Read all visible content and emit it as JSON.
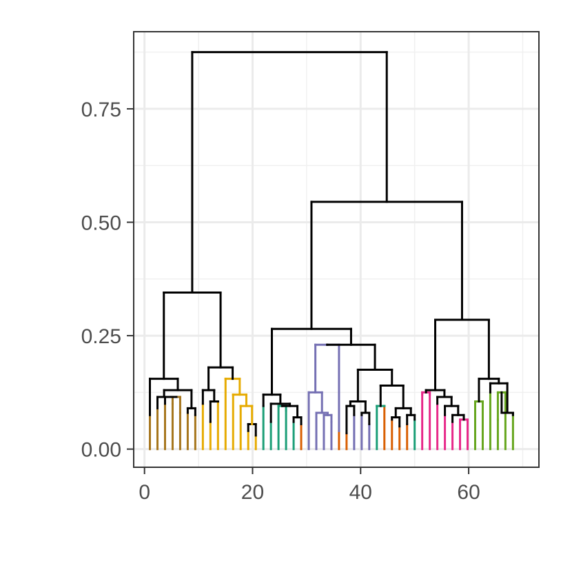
{
  "chart_data": {
    "type": "dendrogram",
    "title": "",
    "xlabel": "",
    "ylabel": "",
    "xlim": [
      -2,
      73
    ],
    "ylim": [
      -0.04,
      0.92
    ],
    "x_ticks": [
      {
        "value": 0,
        "label": "0"
      },
      {
        "value": 20,
        "label": "20"
      },
      {
        "value": 40,
        "label": "40"
      },
      {
        "value": 60,
        "label": "60"
      }
    ],
    "y_ticks": [
      {
        "value": 0.0,
        "label": "0.00"
      },
      {
        "value": 0.25,
        "label": "0.25"
      },
      {
        "value": 0.5,
        "label": "0.50"
      },
      {
        "value": 0.75,
        "label": "0.75"
      }
    ],
    "grid": true,
    "root": {
      "h": 0.875,
      "children": [
        {
          "h": 0.345,
          "children": [
            {
              "h": 0.155,
              "color": "#000000",
              "children": [
                {
                  "leaf": 1,
                  "h": 0.075,
                  "color": "#A6761D"
                },
                {
                  "h": 0.13,
                  "color": "#000000",
                  "children": [
                    {
                      "h": 0.115,
                      "color": "#000000",
                      "children": [
                        {
                          "leaf": 2,
                          "h": 0.09,
                          "color": "#A6761D"
                        },
                        {
                          "h": 0.115,
                          "color": "#000000",
                          "children": [
                            {
                              "leaf": 3,
                              "h": 0.1,
                              "color": "#A6761D"
                            },
                            {
                              "h": 0.115,
                              "color": "#A6761D",
                              "children": [
                                {
                                  "leaf": 4,
                                  "h": 0.1,
                                  "color": "#A6761D"
                                },
                                {
                                  "leaf": 5,
                                  "h": 0.08,
                                  "color": "#A6761D"
                                }
                              ]
                            }
                          ]
                        }
                      ]
                    },
                    {
                      "h": 0.09,
                      "color": "#000000",
                      "children": [
                        {
                          "leaf": 6,
                          "h": 0.08,
                          "color": "#A6761D"
                        },
                        {
                          "leaf": 7,
                          "h": 0.075,
                          "color": "#A6761D"
                        }
                      ]
                    }
                  ]
                }
              ]
            },
            {
              "h": 0.18,
              "color": "#000000",
              "children": [
                {
                  "h": 0.13,
                  "color": "#000000",
                  "children": [
                    {
                      "leaf": 8,
                      "h": 0.1,
                      "color": "#E6AB02"
                    },
                    {
                      "h": 0.105,
                      "color": "#000000",
                      "children": [
                        {
                          "leaf": 9,
                          "h": 0.06,
                          "color": "#E6AB02"
                        },
                        {
                          "leaf": 10,
                          "h": 0.105,
                          "color": "#E6AB02"
                        }
                      ]
                    }
                  ]
                },
                {
                  "h": 0.155,
                  "color": "#E6AB02",
                  "children": [
                    {
                      "leaf": 11,
                      "h": 0.155,
                      "color": "#E6AB02"
                    },
                    {
                      "h": 0.12,
                      "color": "#E6AB02",
                      "children": [
                        {
                          "leaf": 12,
                          "h": 0.12,
                          "color": "#E6AB02"
                        },
                        {
                          "h": 0.095,
                          "color": "#E6AB02",
                          "children": [
                            {
                              "leaf": 13,
                              "h": 0.095,
                              "color": "#E6AB02"
                            },
                            {
                              "h": 0.055,
                              "color": "#000000",
                              "children": [
                                {
                                  "leaf": 14,
                                  "h": 0.04,
                                  "color": "#E6AB02"
                                },
                                {
                                  "leaf": 15,
                                  "h": 0.03,
                                  "color": "#E6AB02"
                                }
                              ]
                            }
                          ]
                        }
                      ]
                    }
                  ]
                }
              ]
            }
          ]
        },
        {
          "h": 0.545,
          "children": [
            {
              "h": 0.265,
              "children": [
                {
                  "h": 0.12,
                  "color": "#000000",
                  "children": [
                    {
                      "leaf": 16,
                      "h": 0.095,
                      "color": "#1B9E77"
                    },
                    {
                      "h": 0.1,
                      "color": "#000000",
                      "children": [
                        {
                          "leaf": 17,
                          "h": 0.06,
                          "color": "#1B9E77"
                        },
                        {
                          "h": 0.095,
                          "color": "#000000",
                          "children": [
                            {
                              "h": 0.095,
                              "color": "#1B9E77",
                              "children": [
                                {
                                  "leaf": 18,
                                  "h": 0.095,
                                  "color": "#1B9E77"
                                },
                                {
                                  "leaf": 19,
                                  "h": 0.085,
                                  "color": "#1B9E77"
                                }
                              ]
                            },
                            {
                              "h": 0.07,
                              "color": "#000000",
                              "children": [
                                {
                                  "leaf": 20,
                                  "h": 0.06,
                                  "color": "#1B9E77"
                                },
                                {
                                  "leaf": 21,
                                  "h": 0.055,
                                  "color": "#D95F02"
                                }
                              ]
                            }
                          ]
                        }
                      ]
                    }
                  ]
                },
                {
                  "h": 0.23,
                  "color": "#000000",
                  "children": [
                    {
                      "h": 0.23,
                      "color": "#7570B3",
                      "children": [
                        {
                          "h": 0.125,
                          "color": "#7570B3",
                          "children": [
                            {
                              "leaf": 22,
                              "h": 0.125,
                              "color": "#7570B3"
                            },
                            {
                              "h": 0.08,
                              "color": "#7570B3",
                              "children": [
                                {
                                  "leaf": 23,
                                  "h": 0.08,
                                  "color": "#7570B3"
                                },
                                {
                                  "h": 0.075,
                                  "color": "#7570B3",
                                  "children": [
                                    {
                                      "leaf": 24,
                                      "h": 0.075,
                                      "color": "#7570B3"
                                    },
                                    {
                                      "leaf": 25,
                                      "h": 0.06,
                                      "color": "#7570B3"
                                    }
                                  ]
                                }
                              ]
                            }
                          ]
                        },
                        {
                          "leaf": 26,
                          "h": 0.04,
                          "color": "#D95F02"
                        }
                      ]
                    },
                    {
                      "h": 0.175,
                      "color": "#000000",
                      "children": [
                        {
                          "h": 0.105,
                          "color": "#000000",
                          "children": [
                            {
                              "h": 0.095,
                              "color": "#000000",
                              "children": [
                                {
                                  "leaf": 27,
                                  "h": 0.035,
                                  "color": "#D95F02"
                                },
                                {
                                  "leaf": 28,
                                  "h": 0.075,
                                  "color": "#7570B3"
                                }
                              ]
                            },
                            {
                              "h": 0.08,
                              "color": "#000000",
                              "children": [
                                {
                                  "leaf": 29,
                                  "h": 0.075,
                                  "color": "#7570B3"
                                },
                                {
                                  "leaf": 30,
                                  "h": 0.055,
                                  "color": "#7570B3"
                                }
                              ]
                            }
                          ]
                        },
                        {
                          "h": 0.14,
                          "color": "#000000",
                          "children": [
                            {
                              "h": 0.095,
                              "color": "#1B9E77",
                              "children": [
                                {
                                  "leaf": 31,
                                  "h": 0.095,
                                  "color": "#1B9E77"
                                },
                                {
                                  "leaf": 32,
                                  "h": 0.095,
                                  "color": "#D95F02"
                                }
                              ]
                            },
                            {
                              "h": 0.09,
                              "color": "#000000",
                              "children": [
                                {
                                  "h": 0.07,
                                  "color": "#000000",
                                  "children": [
                                    {
                                      "leaf": 33,
                                      "h": 0.065,
                                      "color": "#D95F02"
                                    },
                                    {
                                      "leaf": 34,
                                      "h": 0.05,
                                      "color": "#D95F02"
                                    }
                                  ]
                                },
                                {
                                  "h": 0.075,
                                  "color": "#000000",
                                  "children": [
                                    {
                                      "leaf": 35,
                                      "h": 0.055,
                                      "color": "#D95F02"
                                    },
                                    {
                                      "leaf": 36,
                                      "h": 0.065,
                                      "color": "#1B9E77"
                                    }
                                  ]
                                }
                              ]
                            }
                          ]
                        }
                      ]
                    }
                  ]
                }
              ]
            },
            {
              "h": 0.285,
              "children": [
                {
                  "h": 0.13,
                  "color": "#000000",
                  "children": [
                    {
                      "h": 0.125,
                      "color": "#E7298A",
                      "children": [
                        {
                          "leaf": 37,
                          "h": 0.12,
                          "color": "#E7298A"
                        },
                        {
                          "leaf": 38,
                          "h": 0.12,
                          "color": "#E7298A"
                        }
                      ]
                    },
                    {
                      "h": 0.115,
                      "color": "#000000",
                      "children": [
                        {
                          "leaf": 39,
                          "h": 0.1,
                          "color": "#E7298A"
                        },
                        {
                          "h": 0.095,
                          "color": "#000000",
                          "children": [
                            {
                              "leaf": 40,
                              "h": 0.075,
                              "color": "#E7298A"
                            },
                            {
                              "h": 0.075,
                              "color": "#000000",
                              "children": [
                                {
                                  "leaf": 41,
                                  "h": 0.06,
                                  "color": "#E7298A"
                                },
                                {
                                  "h": 0.065,
                                  "color": "#E7298A",
                                  "children": [
                                    {
                                      "leaf": 42,
                                      "h": 0.06,
                                      "color": "#E7298A"
                                    },
                                    {
                                      "leaf": 43,
                                      "h": 0.06,
                                      "color": "#E7298A"
                                    }
                                  ]
                                }
                              ]
                            }
                          ]
                        }
                      ]
                    }
                  ]
                },
                {
                  "h": 0.155,
                  "color": "#000000",
                  "children": [
                    {
                      "h": 0.105,
                      "color": "#66A61E",
                      "children": [
                        {
                          "leaf": 44,
                          "h": 0.095,
                          "color": "#66A61E"
                        },
                        {
                          "leaf": 45,
                          "h": 0.105,
                          "color": "#66A61E"
                        }
                      ]
                    },
                    {
                      "h": 0.145,
                      "color": "#000000",
                      "children": [
                        {
                          "leaf": 46,
                          "h": 0.125,
                          "color": "#66A61E"
                        },
                        {
                          "h": 0.08,
                          "color": "#000000",
                          "children": [
                            {
                              "h": 0.125,
                              "color": "#66A61E",
                              "children": [
                                {
                                  "leaf": 47,
                                  "h": 0.065,
                                  "color": "#66A61E"
                                },
                                {
                                  "leaf": 48,
                                  "h": 0.125,
                                  "color": "#66A61E"
                                }
                              ]
                            },
                            {
                              "leaf": 49,
                              "h": 0.075,
                              "color": "#66A61E"
                            }
                          ]
                        }
                      ]
                    }
                  ]
                }
              ]
            }
          ]
        }
      ]
    }
  }
}
